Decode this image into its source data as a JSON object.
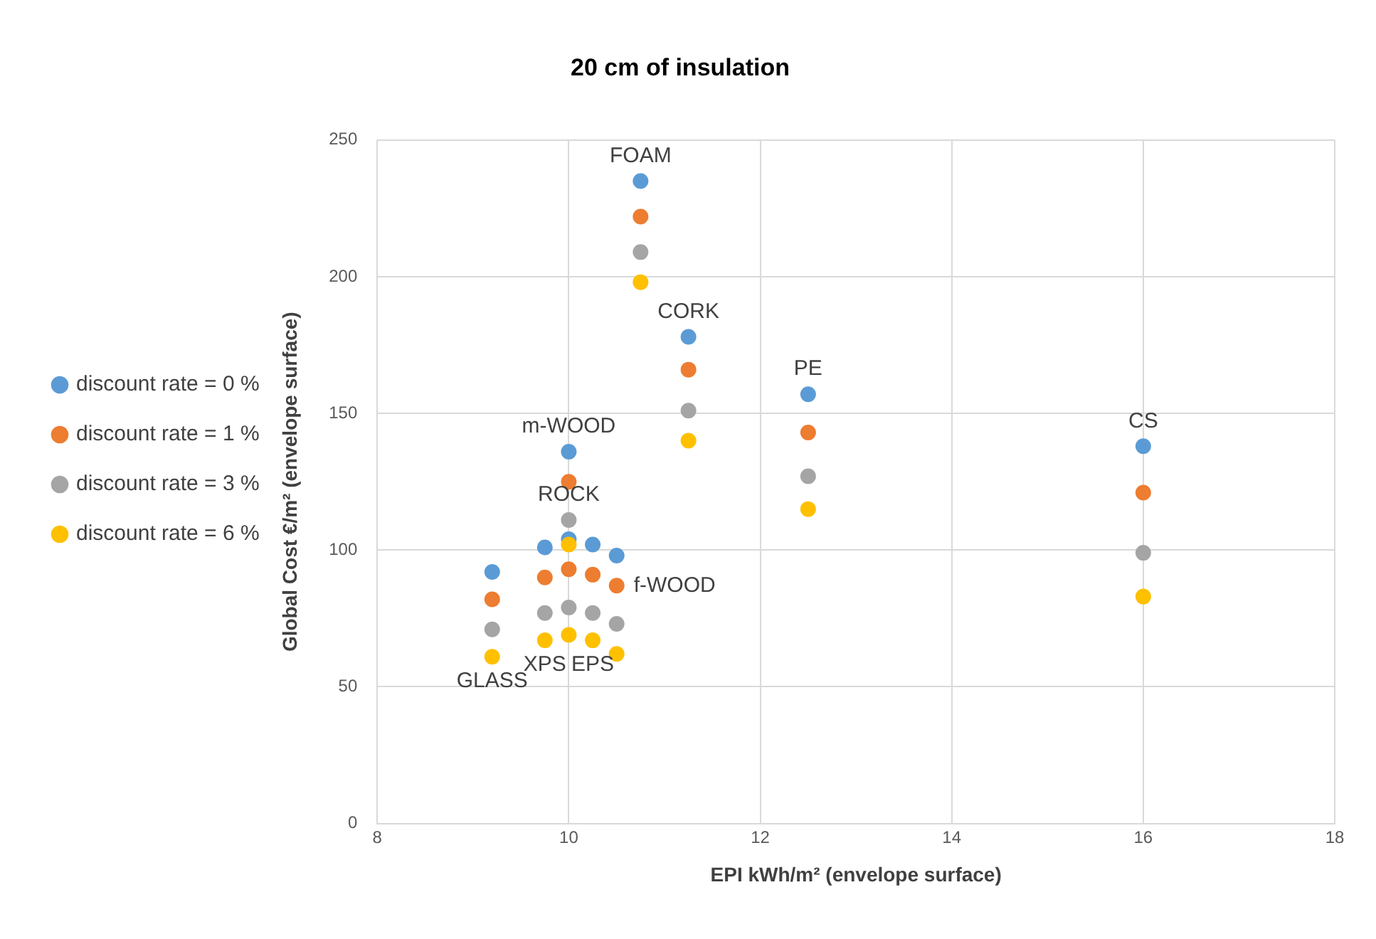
{
  "chart_data": {
    "type": "scatter",
    "title": "20 cm of insulation",
    "xlabel": "EPI kWh/m² (envelope surface)",
    "ylabel": "Global Cost €/m² (envelope surface)",
    "xlim": [
      8,
      18
    ],
    "xticks": [
      8,
      10,
      12,
      14,
      16,
      18
    ],
    "ylim": [
      0,
      250
    ],
    "yticks": [
      0,
      50,
      100,
      150,
      200,
      250
    ],
    "grid": true,
    "legend": "left",
    "marker": "circle",
    "series": [
      {
        "name": "discount rate = 0 %",
        "color": "#5b9bd5",
        "x": [
          9.2,
          9.75,
          10,
          10,
          10.25,
          10.5,
          10.75,
          11.25,
          12.5,
          16
        ],
        "values": [
          92,
          101,
          136,
          104,
          102,
          98,
          235,
          178,
          157,
          138
        ]
      },
      {
        "name": "discount rate = 1 %",
        "color": "#ed7d31",
        "x": [
          9.2,
          9.75,
          10,
          10,
          10.25,
          10.5,
          10.75,
          11.25,
          12.5,
          16
        ],
        "values": [
          82,
          90,
          125,
          93,
          91,
          87,
          222,
          166,
          143,
          121
        ]
      },
      {
        "name": "discount rate = 3 %",
        "color": "#a5a5a5",
        "x": [
          9.2,
          9.75,
          10,
          10,
          10.25,
          10.5,
          10.75,
          11.25,
          12.5,
          16
        ],
        "values": [
          71,
          77,
          111,
          79,
          77,
          73,
          209,
          151,
          127,
          99
        ]
      },
      {
        "name": "discount rate = 6 %",
        "color": "#ffc000",
        "x": [
          9.2,
          9.75,
          10,
          10,
          10.25,
          10.5,
          10.75,
          11.25,
          12.5,
          16
        ],
        "values": [
          61,
          67,
          102,
          69,
          67,
          62,
          198,
          140,
          115,
          83
        ]
      }
    ],
    "annotations": [
      {
        "text": "FOAM",
        "x": 10.75,
        "y": 235
      },
      {
        "text": "CORK",
        "x": 11.25,
        "y": 178
      },
      {
        "text": "PE",
        "x": 12.5,
        "y": 157
      },
      {
        "text": "CS",
        "x": 16,
        "y": 138
      },
      {
        "text": "m-WOOD",
        "x": 10,
        "y": 136
      },
      {
        "text": "ROCK",
        "x": 10,
        "y": 111
      },
      {
        "text": "f-WOOD",
        "x": 10.5,
        "y": 87
      },
      {
        "text": "XPS",
        "x": 9.75,
        "y": 67
      },
      {
        "text": "EPS",
        "x": 10.25,
        "y": 67
      },
      {
        "text": "GLASS",
        "x": 9.2,
        "y": 61
      }
    ]
  }
}
